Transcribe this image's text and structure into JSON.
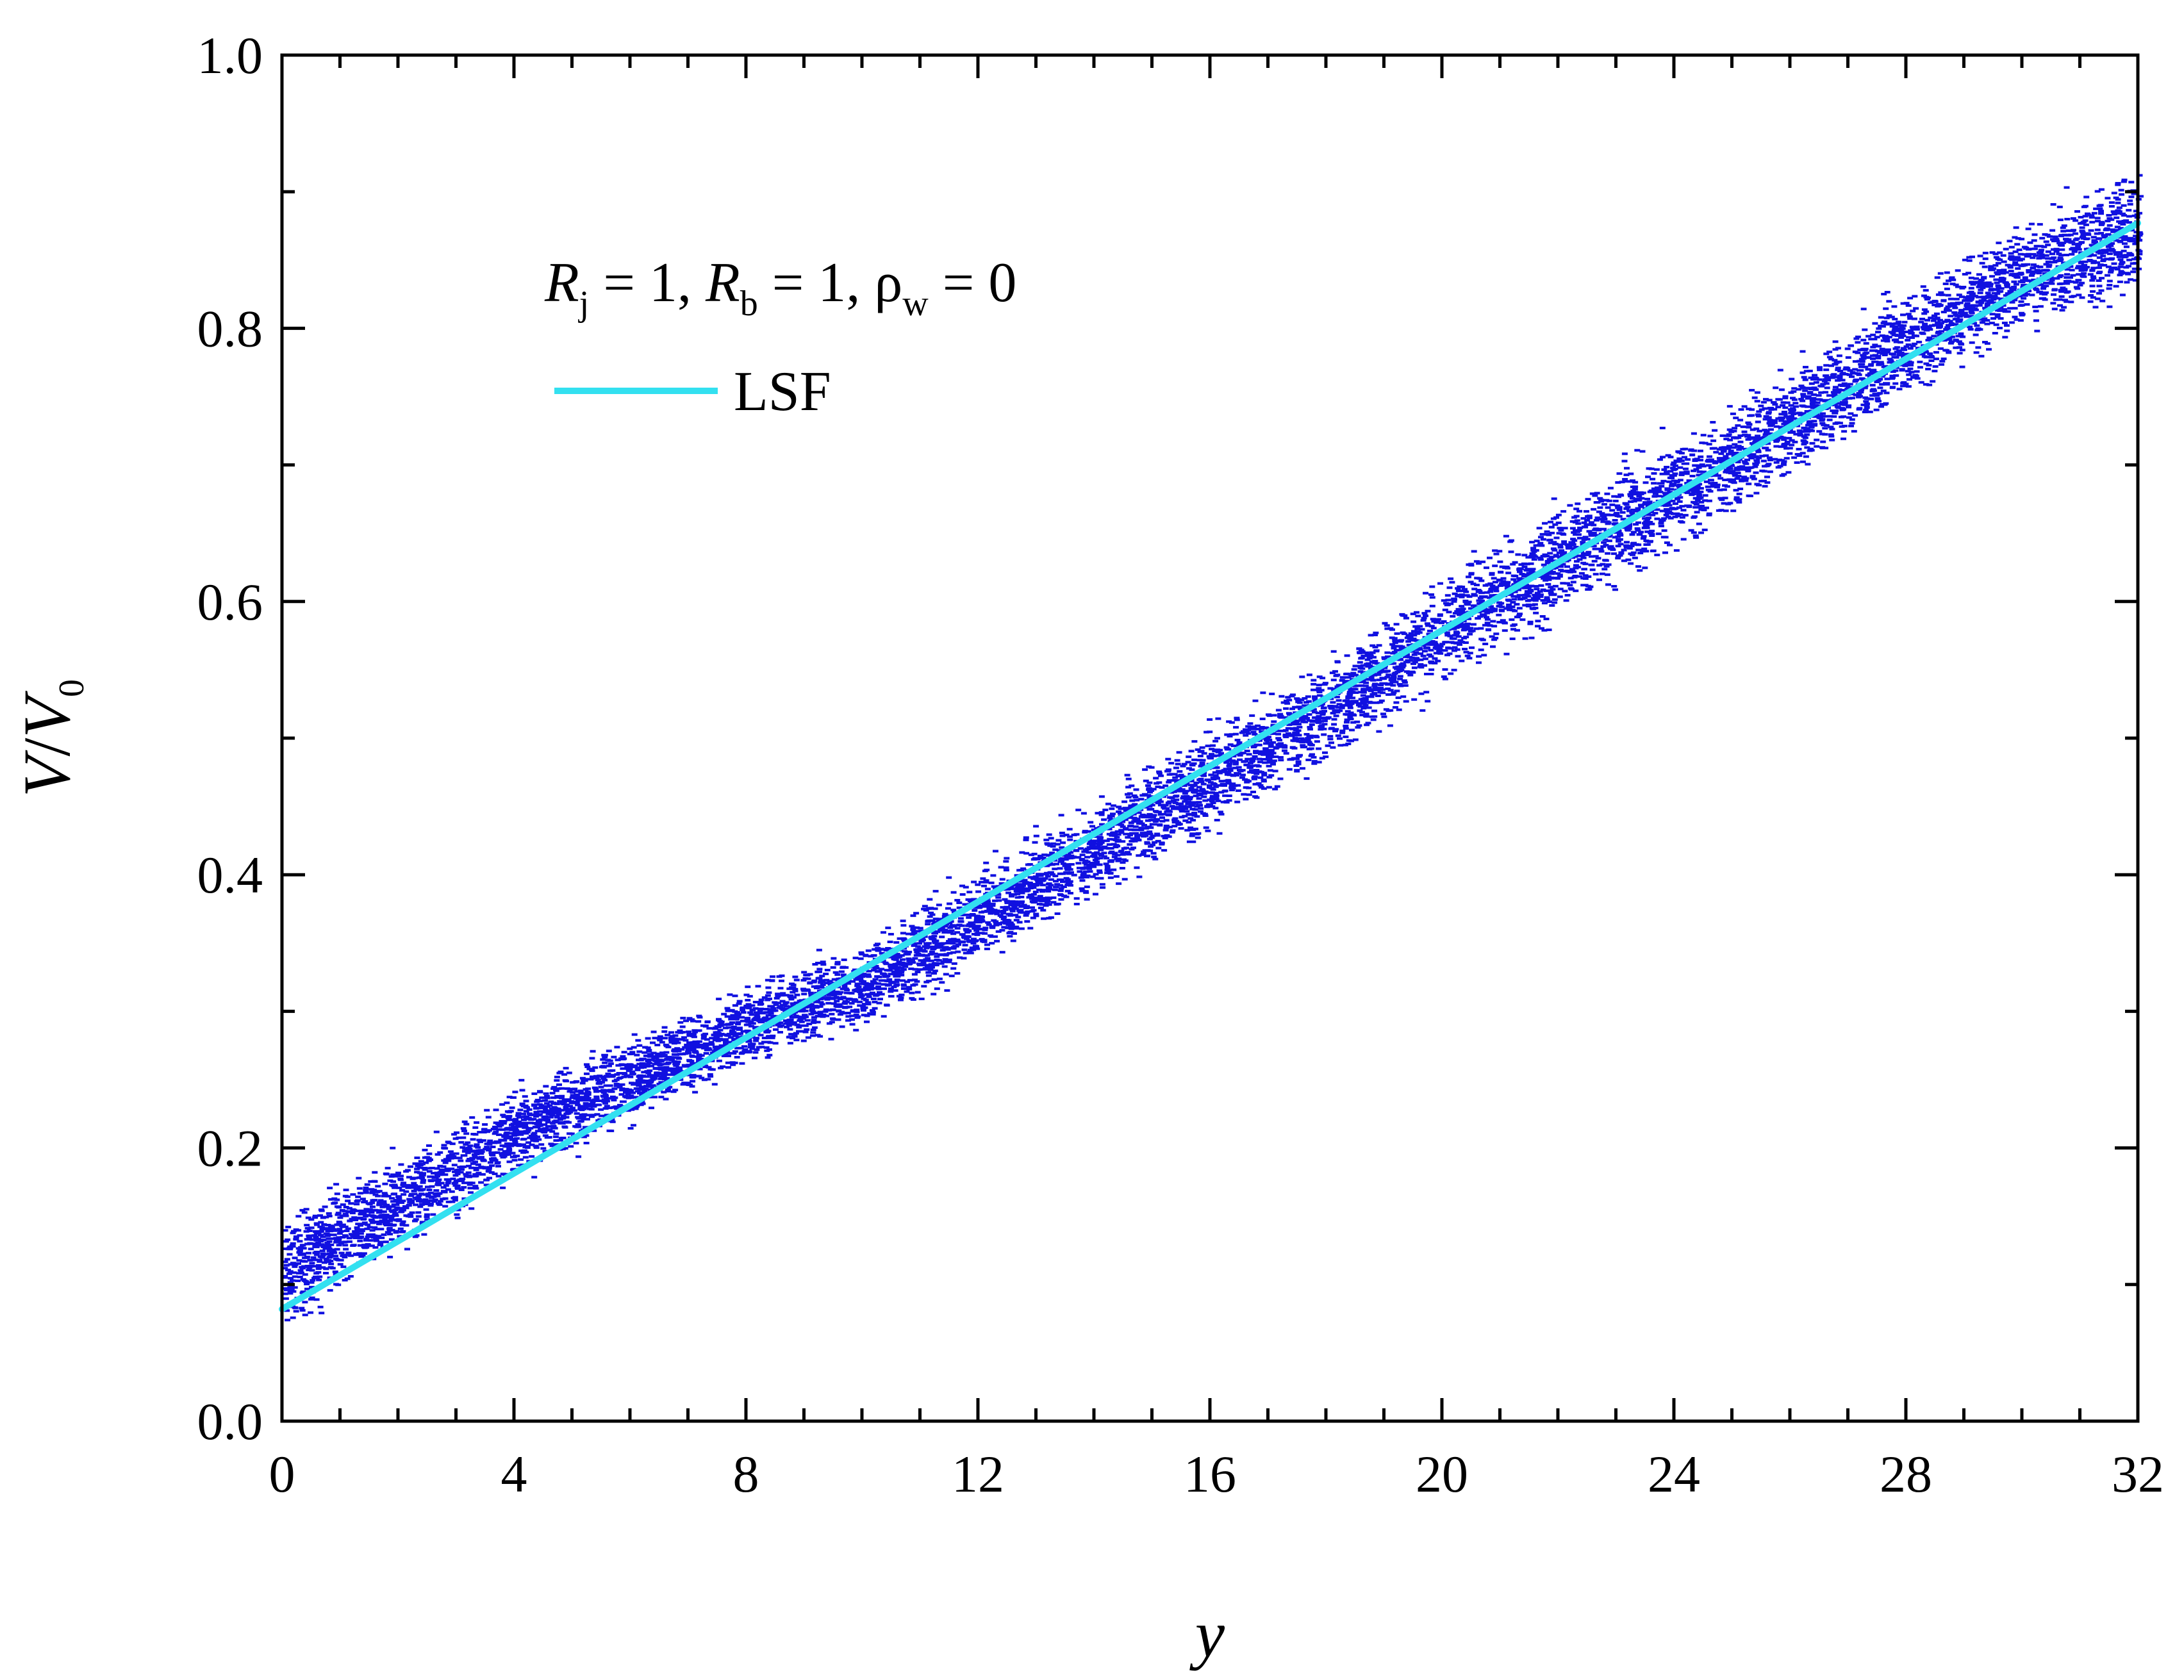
{
  "chart_data": {
    "type": "scatter",
    "title": "",
    "xlabel": "y",
    "ylabel": {
      "main": "V",
      "slash": "/",
      "main2": "V",
      "sub": "0"
    },
    "xlim": [
      0,
      32
    ],
    "ylim": [
      0.0,
      1.0
    ],
    "x_ticks": [
      "0",
      "4",
      "8",
      "12",
      "16",
      "20",
      "24",
      "28",
      "32"
    ],
    "y_ticks": [
      "0.0",
      "0.2",
      "0.4",
      "0.6",
      "0.8",
      "1.0"
    ],
    "annotation": {
      "r1": "R",
      "r1_sub": "j",
      "r1_val": " = 1, ",
      "r2": "R",
      "r2_sub": "b",
      "r2_val": " = 1, ",
      "rho": "ρ",
      "rho_sub": "w",
      "rho_val": " = 0"
    },
    "legend": {
      "position": "top-left",
      "entries": [
        {
          "label": "LSF",
          "color": "#33E0F0"
        }
      ]
    },
    "grid": false,
    "series": [
      {
        "kind": "scatter-band",
        "color": "#1010E0",
        "points_description_samples": [
          {
            "x": 0.0,
            "y_center": 0.11,
            "y_spread": 0.05
          },
          {
            "x": 2.0,
            "y_center": 0.16,
            "y_spread": 0.04
          },
          {
            "x": 4.0,
            "y_center": 0.21,
            "y_spread": 0.04
          },
          {
            "x": 6.0,
            "y_center": 0.25,
            "y_spread": 0.035
          },
          {
            "x": 8.0,
            "y_center": 0.29,
            "y_spread": 0.03
          },
          {
            "x": 10.0,
            "y_center": 0.32,
            "y_spread": 0.035
          },
          {
            "x": 12.0,
            "y_center": 0.37,
            "y_spread": 0.04
          },
          {
            "x": 14.0,
            "y_center": 0.42,
            "y_spread": 0.04
          },
          {
            "x": 16.0,
            "y_center": 0.47,
            "y_spread": 0.045
          },
          {
            "x": 18.0,
            "y_center": 0.52,
            "y_spread": 0.045
          },
          {
            "x": 20.0,
            "y_center": 0.58,
            "y_spread": 0.045
          },
          {
            "x": 22.0,
            "y_center": 0.63,
            "y_spread": 0.05
          },
          {
            "x": 24.0,
            "y_center": 0.68,
            "y_spread": 0.05
          },
          {
            "x": 26.0,
            "y_center": 0.73,
            "y_spread": 0.05
          },
          {
            "x": 28.0,
            "y_center": 0.79,
            "y_spread": 0.05
          },
          {
            "x": 30.0,
            "y_center": 0.84,
            "y_spread": 0.05
          },
          {
            "x": 32.0,
            "y_center": 0.87,
            "y_spread": 0.06
          }
        ]
      },
      {
        "kind": "line",
        "name": "LSF",
        "color": "#33E0F0",
        "x": [
          0,
          32
        ],
        "y": [
          0.082,
          0.877
        ]
      }
    ]
  }
}
